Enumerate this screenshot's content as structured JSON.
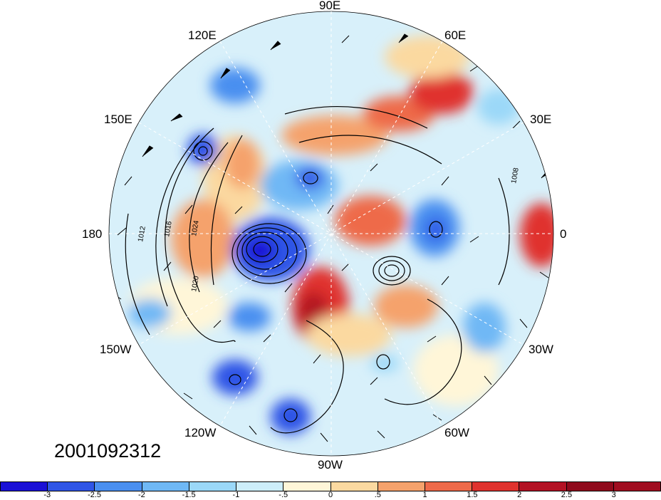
{
  "date_stamp": "2001092312",
  "longitude_labels": {
    "lon_90e": "90E",
    "lon_60e": "60E",
    "lon_30e": "30E",
    "lon_0": "0",
    "lon_30w": "30W",
    "lon_60w": "60W",
    "lon_90w": "90W",
    "lon_120w": "120W",
    "lon_150w": "150W",
    "lon_180": "180",
    "lon_150e": "150E",
    "lon_120e": "120E"
  },
  "isobar_labels": {
    "p1008": "1008",
    "p1012": "1012",
    "p1016": "1016",
    "p1020": "1020",
    "p1024": "1024"
  },
  "colorbar": {
    "colors": [
      "#1a10d6",
      "#2f55e6",
      "#4a8ff0",
      "#6fb8f5",
      "#9bd8f8",
      "#cdeefa",
      "#fff6d8",
      "#fbd9a0",
      "#f5a26c",
      "#ee6a4a",
      "#e0322e",
      "#b31224",
      "#8f0a1c",
      "#a00d20"
    ],
    "tick_labels": [
      "-3",
      "-2.5",
      "-2",
      "-1.5",
      "-1",
      "-.5",
      "0",
      ".5",
      "1",
      "1.5",
      "2",
      "2.5",
      "3"
    ]
  }
}
